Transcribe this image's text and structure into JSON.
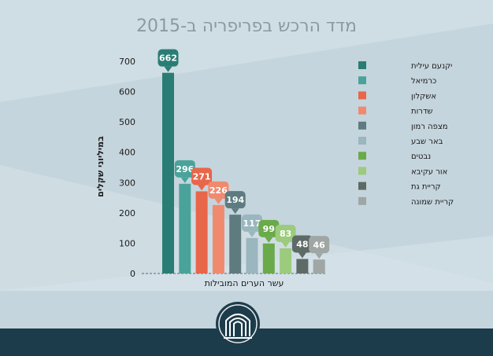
{
  "chart_data": {
    "type": "bar",
    "title": "מדד הרכש בפריפריה ב-2015",
    "xlabel": "עשר הערים המובילות",
    "ylabel": "במיליוני שקלים",
    "ylim": [
      0,
      700
    ],
    "yticks": [
      0,
      100,
      200,
      300,
      400,
      500,
      600,
      700
    ],
    "grid": false,
    "legend_position": "right",
    "categories": [
      "יקנעם עילית",
      "כרמיאל",
      "אשקלון",
      "שדרות",
      "מצפה רמון",
      "באר שבע",
      "נבטים",
      "אור עקיבא",
      "קריית גת",
      "קריית שמונה"
    ],
    "values": [
      662,
      296,
      271,
      226,
      194,
      117,
      99,
      83,
      48,
      46
    ],
    "data_labels": [
      "662",
      "296",
      "271",
      "226",
      "194",
      "117",
      "99",
      "83",
      "48",
      "46"
    ],
    "colors": [
      "#2a7d74",
      "#4aa39a",
      "#e8664a",
      "#f08a6f",
      "#5e7b80",
      "#9ab6bf",
      "#6aaa4a",
      "#9ccb7d",
      "#5e6a66",
      "#9fa6a4"
    ]
  },
  "theme": {
    "background": "#cfdde5",
    "title_color": "#8a9aa3",
    "text_color": "#1a1a1a",
    "footer_color": "#1d3c4b"
  },
  "logo": {
    "icon": "stylized-building-emblem-icon"
  }
}
